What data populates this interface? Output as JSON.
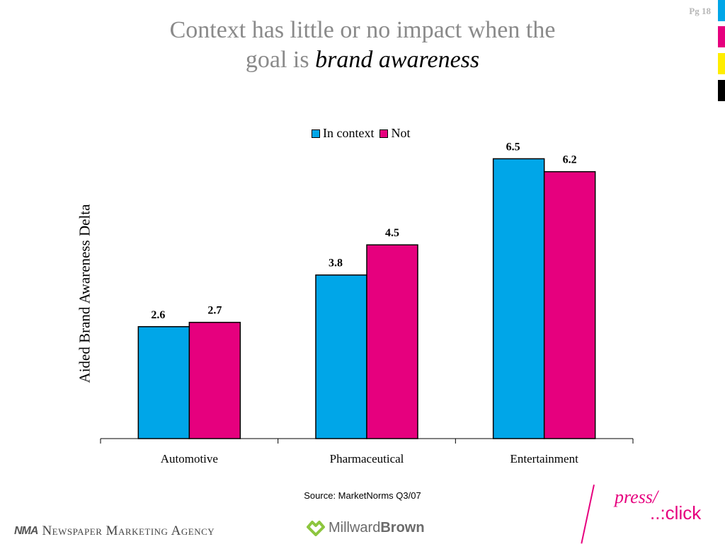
{
  "page": {
    "number": "Pg 18"
  },
  "title": {
    "line1": "Context has little or no impact when the",
    "line2_plain": "goal is ",
    "line2_italic": "brand awareness"
  },
  "colors": {
    "in_context": "#00a6e8",
    "not": "#e6007e",
    "title_gray": "#8a8a8a",
    "strip": [
      "#00a6e8",
      "#e6007e",
      "#ffed00",
      "#000000"
    ]
  },
  "chart_data": {
    "type": "bar",
    "categories": [
      "Automotive",
      "Pharmaceutical",
      "Entertainment"
    ],
    "series": [
      {
        "name": "In context",
        "values": [
          2.6,
          3.8,
          6.5
        ],
        "labels": [
          "2.6",
          "3.8",
          "6.5"
        ]
      },
      {
        "name": "Not",
        "values": [
          2.7,
          4.5,
          6.2
        ],
        "labels": [
          "2.7",
          "4.5",
          "6.2"
        ]
      }
    ],
    "ylabel": "Aided Brand Awareness Delta",
    "ylim": [
      0,
      7
    ],
    "legend": "top",
    "grid": false
  },
  "source": "Source: MarketNorms Q3/07",
  "footer": {
    "nma_mark": "NMA",
    "nma_name": "Newspaper Marketing Agency",
    "mb_name_a": "Millward",
    "mb_name_b": "Brown",
    "pc_press": "press/",
    "pc_click": "..:click"
  }
}
